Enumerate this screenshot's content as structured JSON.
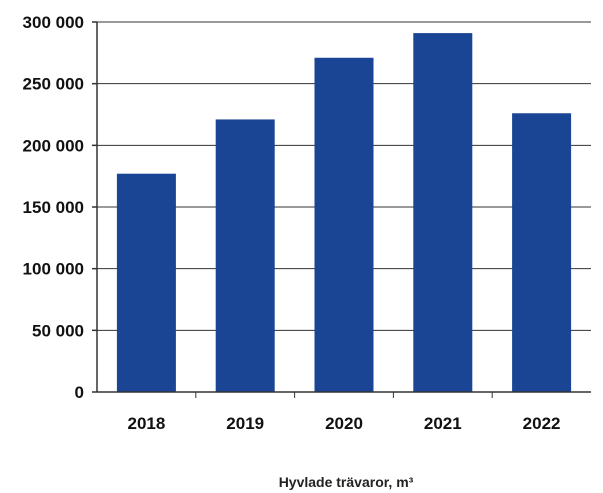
{
  "chart_data": {
    "type": "bar",
    "title": "",
    "xlabel": "Hyvlade trävaror, m³",
    "ylabel": "",
    "categories": [
      "2018",
      "2019",
      "2020",
      "2021",
      "2022"
    ],
    "values": [
      177000,
      221000,
      271000,
      291000,
      226000
    ],
    "ylim": [
      0,
      300000
    ],
    "yticks": [
      0,
      50000,
      100000,
      150000,
      200000,
      250000,
      300000
    ],
    "ytick_labels": [
      "0",
      "50 000",
      "100 000",
      "150 000",
      "200 000",
      "250 000",
      "300 000"
    ],
    "grid": true,
    "legend": "none",
    "bar_color": "#1a4494"
  }
}
